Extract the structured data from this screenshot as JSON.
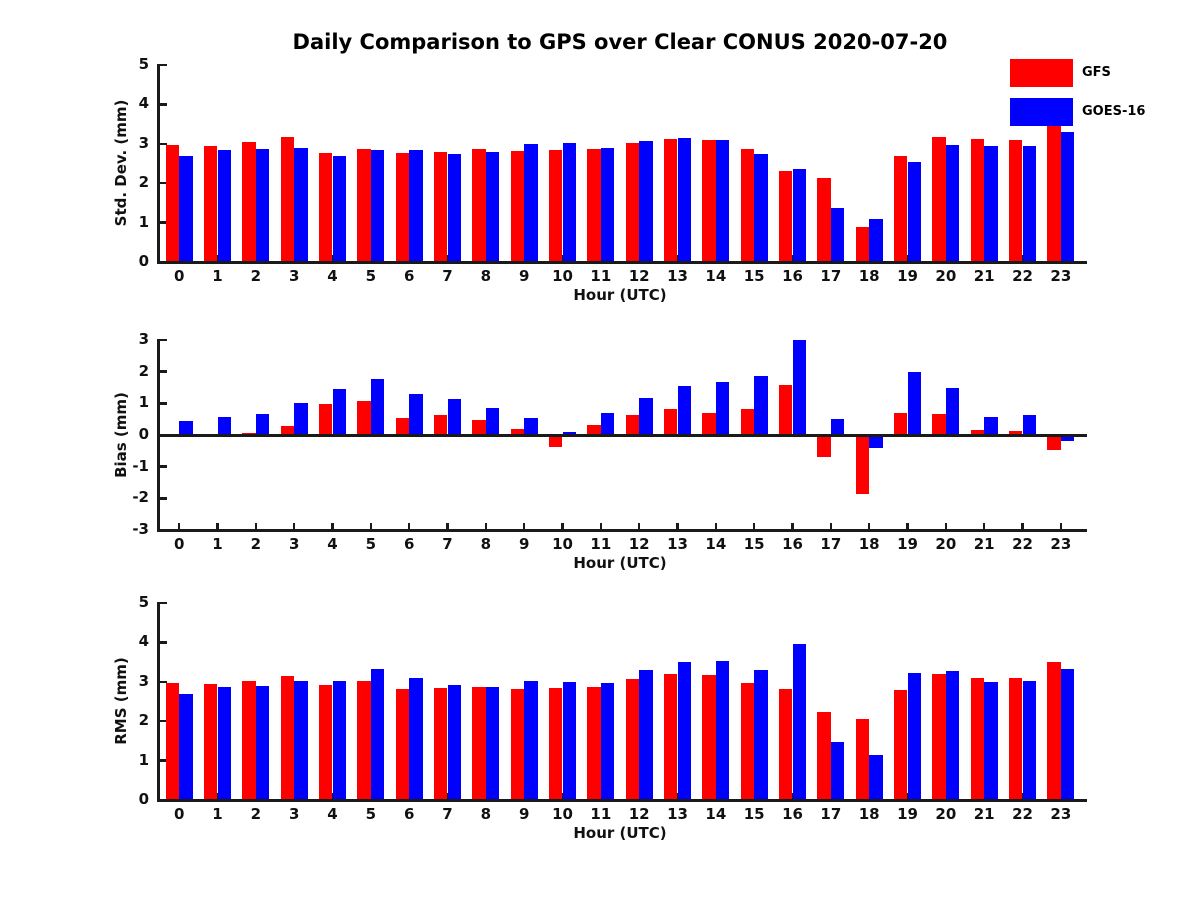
{
  "title": "Daily Comparison to GPS over Clear CONUS 2020-07-20",
  "legend": {
    "position": "top-right",
    "items": [
      {
        "label": "GFS",
        "color": "#ff0000"
      },
      {
        "label": "GOES-16",
        "color": "#0000ff"
      }
    ]
  },
  "chart_data": [
    {
      "type": "bar",
      "title": "Daily Comparison to GPS over Clear CONUS 2020-07-20",
      "ylabel": "Std. Dev. (mm)",
      "xlabel": "Hour (UTC)",
      "ylim": [
        0,
        5
      ],
      "yticks": [
        0,
        1,
        2,
        3,
        4,
        5
      ],
      "grid": false,
      "categories": [
        0,
        1,
        2,
        3,
        4,
        5,
        6,
        7,
        8,
        9,
        10,
        11,
        12,
        13,
        14,
        15,
        16,
        17,
        18,
        19,
        20,
        21,
        22,
        23
      ],
      "series": [
        {
          "name": "GFS",
          "color": "#ff0000",
          "values": [
            2.97,
            2.95,
            3.05,
            3.18,
            2.76,
            2.86,
            2.76,
            2.78,
            2.86,
            2.81,
            2.84,
            2.87,
            3.03,
            3.12,
            3.1,
            2.88,
            2.32,
            2.12,
            0.88,
            2.7,
            3.16,
            3.11,
            3.1,
            3.44
          ]
        },
        {
          "name": "GOES-16",
          "color": "#0000ff",
          "values": [
            2.7,
            2.83,
            2.86,
            2.89,
            2.68,
            2.83,
            2.85,
            2.73,
            2.78,
            3.0,
            3.02,
            2.9,
            3.07,
            3.15,
            3.1,
            2.75,
            2.37,
            1.37,
            1.08,
            2.55,
            2.97,
            2.95,
            2.95,
            3.29
          ]
        }
      ]
    },
    {
      "type": "bar",
      "title": "",
      "ylabel": "Bias (mm)",
      "xlabel": "Hour (UTC)",
      "ylim": [
        -3,
        3
      ],
      "yticks": [
        -3,
        -2,
        -1,
        0,
        1,
        2,
        3
      ],
      "grid": false,
      "categories": [
        0,
        1,
        2,
        3,
        4,
        5,
        6,
        7,
        8,
        9,
        10,
        11,
        12,
        13,
        14,
        15,
        16,
        17,
        18,
        19,
        20,
        21,
        22,
        23
      ],
      "series": [
        {
          "name": "GFS",
          "color": "#ff0000",
          "values": [
            0.03,
            0.02,
            0.07,
            0.28,
            0.97,
            1.06,
            0.53,
            0.63,
            0.46,
            0.2,
            -0.38,
            0.31,
            0.62,
            0.82,
            0.7,
            0.82,
            1.58,
            -0.69,
            -1.86,
            0.69,
            0.66,
            0.16,
            0.13,
            -0.47
          ]
        },
        {
          "name": "GOES-16",
          "color": "#0000ff",
          "values": [
            0.44,
            0.58,
            0.65,
            1.0,
            1.45,
            1.76,
            1.3,
            1.15,
            0.84,
            0.53,
            0.1,
            0.68,
            1.18,
            1.55,
            1.66,
            1.85,
            3.0,
            0.5,
            -0.41,
            2.0,
            1.47,
            0.57,
            0.63,
            -0.19
          ]
        }
      ]
    },
    {
      "type": "bar",
      "title": "",
      "ylabel": "RMS (mm)",
      "xlabel": "Hour (UTC)",
      "ylim": [
        0,
        5
      ],
      "yticks": [
        0,
        1,
        2,
        3,
        4,
        5
      ],
      "grid": false,
      "categories": [
        0,
        1,
        2,
        3,
        4,
        5,
        6,
        7,
        8,
        9,
        10,
        11,
        12,
        13,
        14,
        15,
        16,
        17,
        18,
        19,
        20,
        21,
        22,
        23
      ],
      "series": [
        {
          "name": "GFS",
          "color": "#ff0000",
          "values": [
            2.96,
            2.94,
            3.02,
            3.15,
            2.92,
            3.03,
            2.82,
            2.84,
            2.87,
            2.82,
            2.85,
            2.87,
            3.07,
            3.21,
            3.16,
            2.97,
            2.82,
            2.23,
            2.05,
            2.78,
            3.2,
            3.09,
            3.09,
            3.5
          ]
        },
        {
          "name": "GOES-16",
          "color": "#0000ff",
          "values": [
            2.7,
            2.88,
            2.9,
            3.03,
            3.02,
            3.32,
            3.1,
            2.93,
            2.88,
            3.02,
            3.0,
            2.97,
            3.29,
            3.5,
            3.53,
            3.3,
            3.95,
            1.47,
            1.15,
            3.23,
            3.28,
            3.0,
            3.02,
            3.32
          ]
        }
      ]
    }
  ]
}
